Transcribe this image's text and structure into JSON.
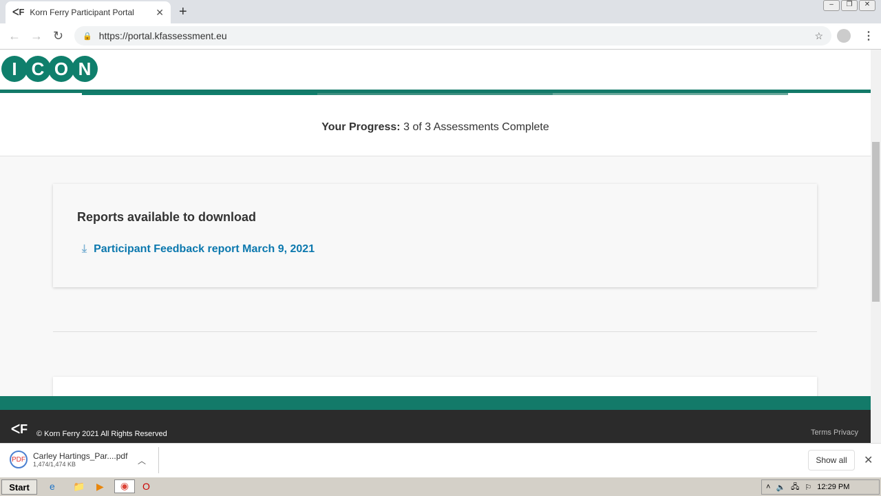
{
  "browser": {
    "tab_title": "Korn Ferry Participant Portal",
    "url": "https://portal.kfassessment.eu"
  },
  "header": {
    "logo_letters": [
      "I",
      "C",
      "O",
      "N"
    ],
    "progress_label": "Your Progress:",
    "progress_text": "3 of 3 Assessments Complete",
    "progress_completed": 3,
    "progress_total": 3,
    "brand_color": "#137a69"
  },
  "reports": {
    "title": "Reports available to download",
    "items": [
      {
        "label": "Participant Feedback report March 9, 2021"
      }
    ]
  },
  "footer": {
    "copyright": "© Korn Ferry 2021 All Rights Reserved",
    "links": "Terms  Privacy"
  },
  "downloads": {
    "file_name": "Carley Hartings_Par....pdf",
    "file_size": "1,474/1,474 KB",
    "show_all": "Show all"
  },
  "taskbar": {
    "start": "Start",
    "clock": "12:29 PM"
  }
}
